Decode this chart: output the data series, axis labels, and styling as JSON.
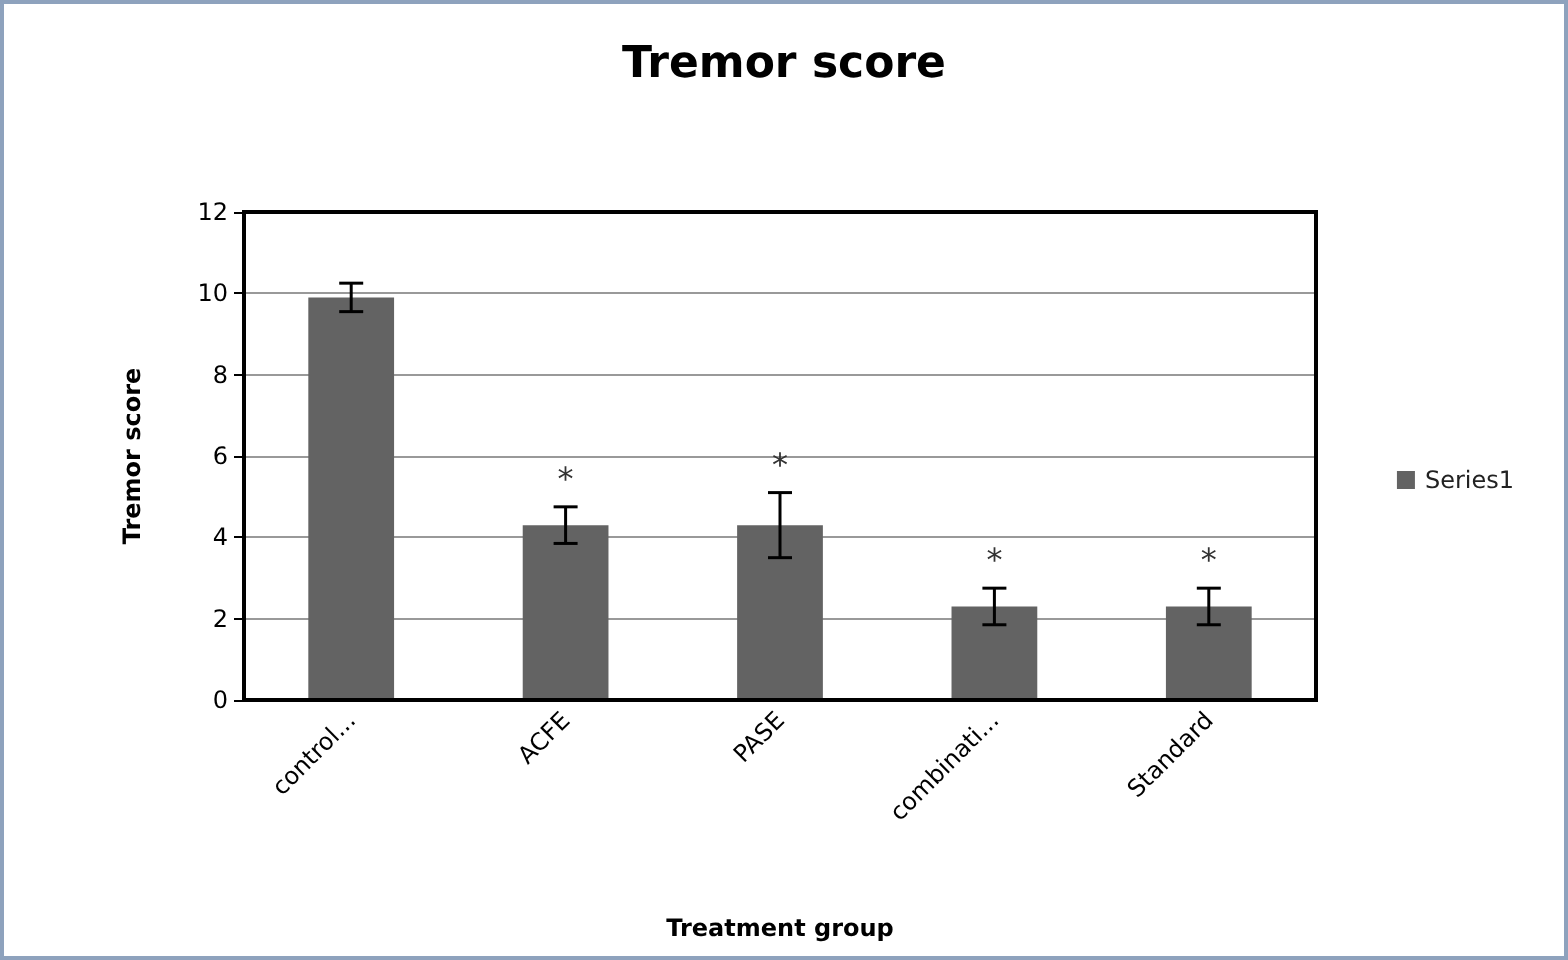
{
  "chart_data": {
    "type": "bar",
    "title": "Tremor score",
    "xlabel": "Treatment group",
    "ylabel": "Tremor score",
    "categories": [
      "control...",
      "ACFE",
      "PASE",
      "combinati...",
      "Standard"
    ],
    "series": [
      {
        "name": "Series1",
        "color": "#636363",
        "values": [
          9.9,
          4.3,
          4.3,
          2.3,
          2.3
        ],
        "errors": [
          0.35,
          0.45,
          0.8,
          0.45,
          0.45
        ]
      }
    ],
    "ylim": [
      0,
      12
    ],
    "yticks": [
      0,
      2,
      4,
      6,
      8,
      10,
      12
    ],
    "grid": "y",
    "legend": "right",
    "annotations": [
      {
        "text": "*",
        "x": "ACFE",
        "y": 4.3
      },
      {
        "text": "*",
        "x": "PASE",
        "y": 4.3
      },
      {
        "text": "*",
        "x": "combinati...",
        "y": 2.3
      },
      {
        "text": "*",
        "x": "Standard",
        "y": 2.3
      }
    ]
  }
}
